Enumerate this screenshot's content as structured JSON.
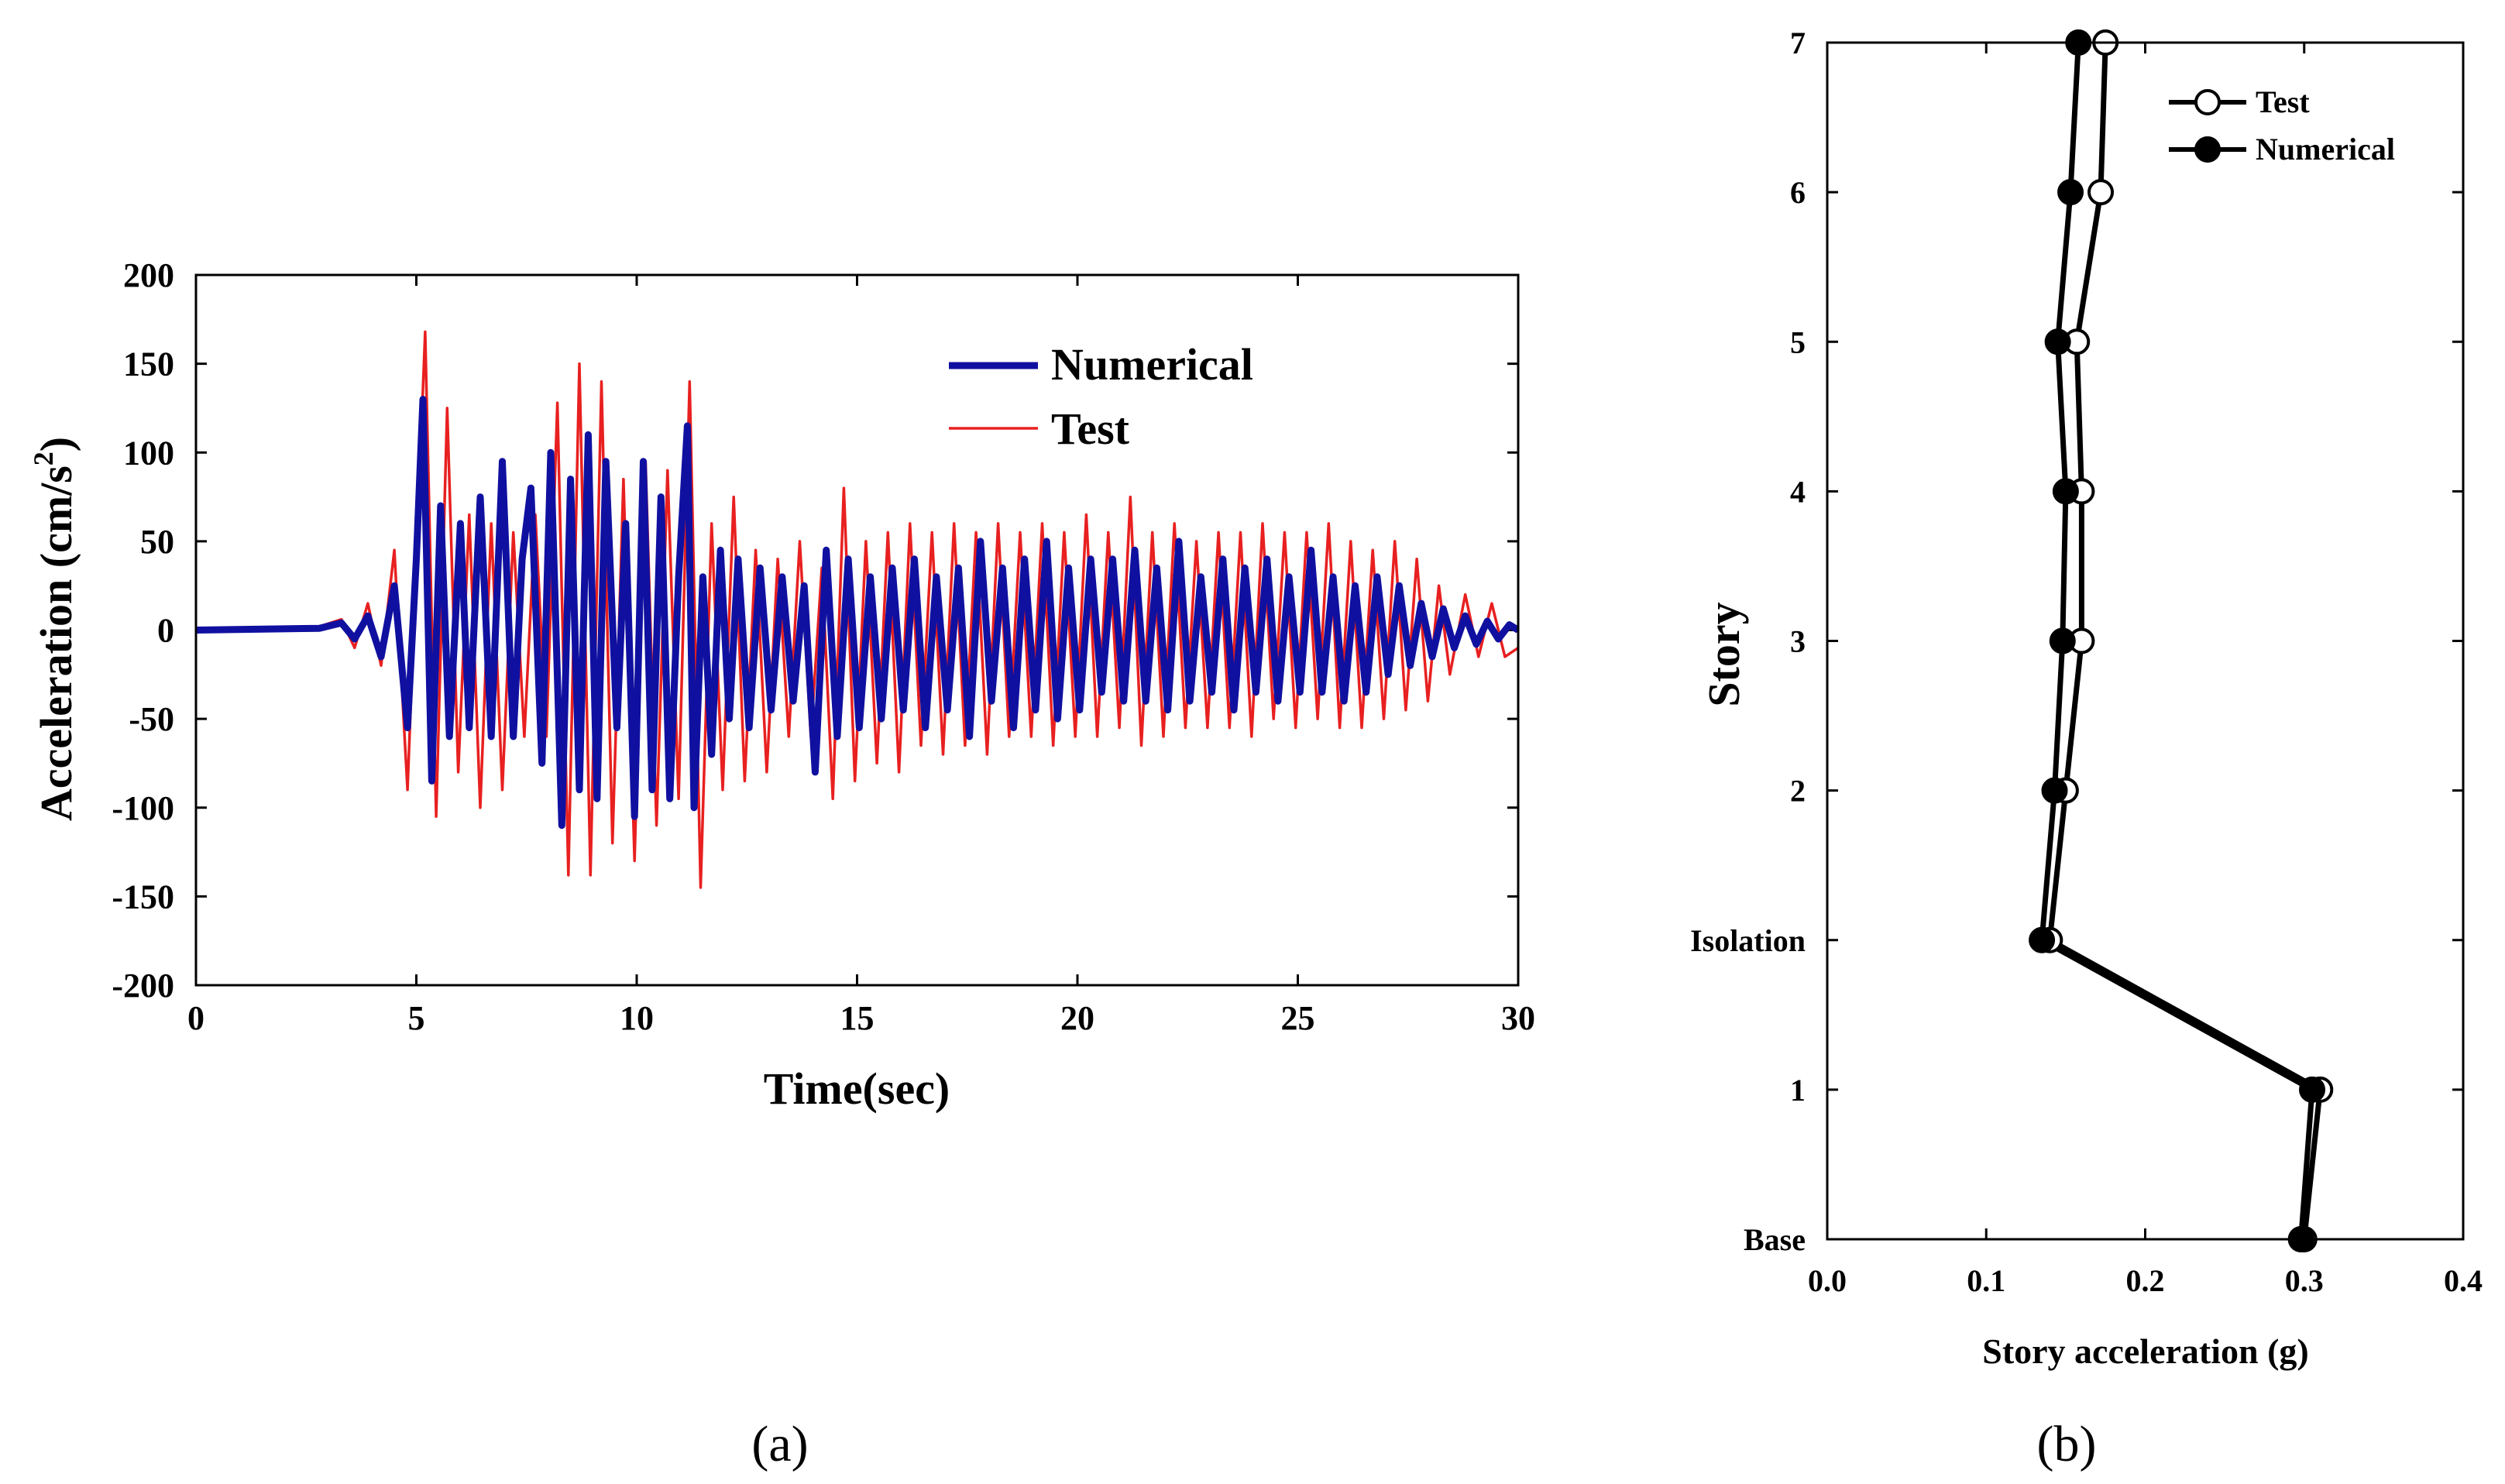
{
  "chart_data": [
    {
      "type": "line",
      "caption": "(a)",
      "xlabel": "Time(sec)",
      "ylabel_main": "Acceleration (cm/s",
      "ylabel_sup": "2",
      "ylabel_close": ")",
      "xlim": [
        0,
        30
      ],
      "ylim": [
        -200,
        200
      ],
      "xticks": [
        0,
        5,
        10,
        15,
        20,
        25,
        30
      ],
      "yticks": [
        200,
        150,
        100,
        50,
        0,
        -50,
        -100,
        -150,
        -200
      ],
      "legend_position": "top-right",
      "series": [
        {
          "name": "Numerical",
          "color": "#1010a0",
          "x": [
            0,
            2.8,
            3.3,
            3.6,
            3.9,
            4.2,
            4.5,
            4.8,
            5.0,
            5.15,
            5.35,
            5.55,
            5.75,
            6.0,
            6.2,
            6.45,
            6.7,
            6.95,
            7.2,
            7.4,
            7.6,
            7.85,
            8.05,
            8.3,
            8.5,
            8.7,
            8.9,
            9.1,
            9.3,
            9.55,
            9.75,
            9.95,
            10.15,
            10.35,
            10.55,
            10.75,
            10.95,
            11.15,
            11.3,
            11.5,
            11.7,
            11.9,
            12.1,
            12.3,
            12.55,
            12.8,
            13.05,
            13.3,
            13.55,
            13.8,
            14.05,
            14.3,
            14.55,
            14.8,
            15.05,
            15.3,
            15.55,
            15.8,
            16.05,
            16.3,
            16.55,
            16.8,
            17.05,
            17.3,
            17.55,
            17.8,
            18.05,
            18.3,
            18.55,
            18.8,
            19.05,
            19.3,
            19.55,
            19.8,
            20.05,
            20.3,
            20.55,
            20.8,
            21.05,
            21.3,
            21.55,
            21.8,
            22.05,
            22.3,
            22.55,
            22.8,
            23.05,
            23.3,
            23.55,
            23.8,
            24.05,
            24.3,
            24.55,
            24.8,
            25.05,
            25.3,
            25.55,
            25.8,
            26.05,
            26.3,
            26.55,
            26.8,
            27.05,
            27.3,
            27.55,
            27.8,
            28.05,
            28.3,
            28.55,
            28.8,
            29.05,
            29.3,
            29.55,
            29.8,
            30
          ],
          "y": [
            0,
            1,
            4,
            -5,
            8,
            -15,
            25,
            -55,
            40,
            130,
            -85,
            70,
            -60,
            60,
            -55,
            75,
            -60,
            95,
            -60,
            40,
            80,
            -75,
            100,
            -110,
            85,
            -90,
            110,
            -95,
            95,
            -55,
            60,
            -105,
            95,
            -90,
            75,
            -95,
            30,
            115,
            -100,
            30,
            -70,
            45,
            -50,
            40,
            -55,
            35,
            -45,
            30,
            -40,
            25,
            -80,
            45,
            -60,
            40,
            -55,
            30,
            -50,
            35,
            -45,
            40,
            -55,
            30,
            -45,
            35,
            -60,
            50,
            -40,
            35,
            -55,
            40,
            -45,
            50,
            -50,
            35,
            -45,
            40,
            -35,
            40,
            -40,
            45,
            -40,
            35,
            -45,
            50,
            -40,
            30,
            -35,
            40,
            -45,
            35,
            -35,
            40,
            -40,
            30,
            -35,
            45,
            -35,
            30,
            -40,
            25,
            -35,
            30,
            -25,
            25,
            -20,
            15,
            -15,
            12,
            -10,
            8,
            -8,
            5,
            -5,
            3,
            0
          ]
        },
        {
          "name": "Test",
          "color": "#e82020",
          "x": [
            0,
            2.8,
            3.3,
            3.6,
            3.9,
            4.2,
            4.5,
            4.8,
            5.0,
            5.2,
            5.45,
            5.7,
            5.95,
            6.2,
            6.45,
            6.7,
            6.95,
            7.2,
            7.45,
            7.7,
            7.95,
            8.2,
            8.45,
            8.7,
            8.95,
            9.2,
            9.45,
            9.7,
            9.95,
            10.2,
            10.45,
            10.7,
            10.95,
            11.2,
            11.45,
            11.7,
            11.95,
            12.2,
            12.45,
            12.7,
            12.95,
            13.2,
            13.45,
            13.7,
            13.95,
            14.2,
            14.45,
            14.7,
            14.95,
            15.2,
            15.45,
            15.7,
            15.95,
            16.2,
            16.45,
            16.7,
            16.95,
            17.2,
            17.45,
            17.7,
            17.95,
            18.2,
            18.45,
            18.7,
            18.95,
            19.2,
            19.45,
            19.7,
            19.95,
            20.2,
            20.45,
            20.7,
            20.95,
            21.2,
            21.45,
            21.7,
            21.95,
            22.2,
            22.45,
            22.7,
            22.95,
            23.2,
            23.45,
            23.7,
            23.95,
            24.2,
            24.45,
            24.7,
            24.95,
            25.2,
            25.45,
            25.7,
            25.95,
            26.2,
            26.45,
            26.7,
            26.95,
            27.2,
            27.45,
            27.7,
            27.95,
            28.2,
            28.45,
            28.8,
            29.1,
            29.4,
            29.7,
            30
          ],
          "y": [
            0,
            2,
            6,
            -10,
            15,
            -20,
            45,
            -90,
            40,
            168,
            -105,
            125,
            -80,
            65,
            -100,
            60,
            -90,
            55,
            -60,
            65,
            -60,
            128,
            -138,
            150,
            -138,
            140,
            -120,
            85,
            -130,
            95,
            -110,
            90,
            -95,
            140,
            -145,
            60,
            -90,
            75,
            -85,
            45,
            -80,
            40,
            -60,
            50,
            -60,
            35,
            -95,
            80,
            -85,
            50,
            -75,
            55,
            -80,
            60,
            -65,
            55,
            -70,
            60,
            -65,
            55,
            -70,
            60,
            -60,
            55,
            -60,
            60,
            -65,
            55,
            -60,
            65,
            -60,
            55,
            -55,
            75,
            -65,
            55,
            -60,
            60,
            -55,
            50,
            -55,
            55,
            -55,
            55,
            -60,
            60,
            -50,
            55,
            -55,
            55,
            -50,
            60,
            -55,
            50,
            -55,
            45,
            -50,
            50,
            -45,
            40,
            -40,
            25,
            -25,
            20,
            -15,
            15,
            -15,
            -10
          ]
        }
      ]
    },
    {
      "type": "line",
      "caption": "(b)",
      "xlabel": "Story acceleration (g)",
      "ylabel": "Story",
      "xlim": [
        0.0,
        0.4
      ],
      "xticks": [
        "0.0",
        "0.1",
        "0.2",
        "0.3",
        "0.4"
      ],
      "y_categories": [
        "Base",
        "1",
        "Isolation",
        "2",
        "3",
        "4",
        "5",
        "6",
        "7"
      ],
      "legend_position": "top-right",
      "series": [
        {
          "name": "Test",
          "marker": "open-circle",
          "values": [
            0.3,
            0.31,
            0.14,
            0.15,
            0.16,
            0.16,
            0.157,
            0.172,
            0.175
          ]
        },
        {
          "name": "Numerical",
          "marker": "filled-circle",
          "values": [
            0.298,
            0.305,
            0.135,
            0.143,
            0.148,
            0.15,
            0.145,
            0.153,
            0.158
          ]
        }
      ]
    }
  ]
}
